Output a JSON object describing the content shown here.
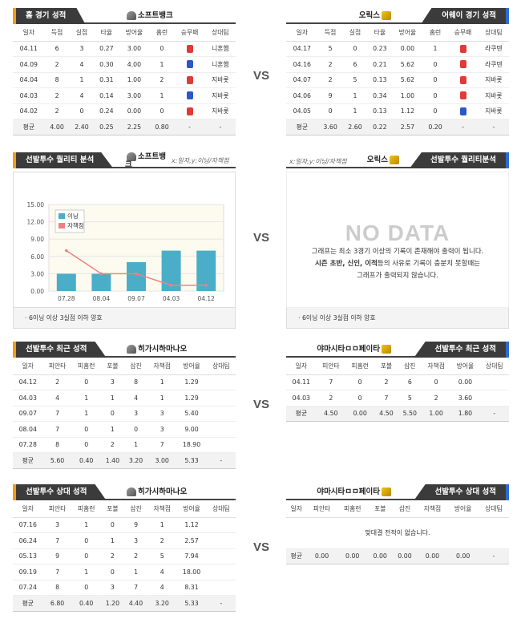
{
  "vs": "VS",
  "sec1": {
    "left": {
      "tab": "홈 경기 성적",
      "team": "소프트뱅크",
      "cols": [
        "일자",
        "득점",
        "실점",
        "타율",
        "방어율",
        "홈런",
        "승무패",
        "상대팀"
      ],
      "rows": [
        [
          "04.11",
          "6",
          "3",
          "0.27",
          "3.00",
          "0",
          "L",
          "니혼햄"
        ],
        [
          "04.09",
          "2",
          "4",
          "0.30",
          "4.00",
          "1",
          "W",
          "니혼햄"
        ],
        [
          "04.04",
          "8",
          "1",
          "0.31",
          "1.00",
          "2",
          "L",
          "지바롯"
        ],
        [
          "04.03",
          "2",
          "4",
          "0.14",
          "3.00",
          "1",
          "W",
          "지바롯"
        ],
        [
          "04.02",
          "2",
          "0",
          "0.24",
          "0.00",
          "0",
          "L",
          "지바롯"
        ]
      ],
      "avg": [
        "평균",
        "4.00",
        "2.40",
        "0.25",
        "2.25",
        "0.80",
        "-",
        "-"
      ]
    },
    "right": {
      "tab": "어웨이 경기 성적",
      "team": "오릭스",
      "cols": [
        "일자",
        "득점",
        "실점",
        "타율",
        "방어율",
        "홈런",
        "승무패",
        "상대팀"
      ],
      "rows": [
        [
          "04.17",
          "5",
          "0",
          "0.23",
          "0.00",
          "1",
          "L",
          "라쿠텐"
        ],
        [
          "04.16",
          "2",
          "6",
          "0.21",
          "5.62",
          "0",
          "L",
          "라쿠텐"
        ],
        [
          "04.07",
          "2",
          "5",
          "0.13",
          "5.62",
          "0",
          "L",
          "지바롯"
        ],
        [
          "04.06",
          "9",
          "1",
          "0.34",
          "1.00",
          "0",
          "L",
          "지바롯"
        ],
        [
          "04.05",
          "0",
          "1",
          "0.13",
          "1.12",
          "0",
          "W",
          "지바롯"
        ]
      ],
      "avg": [
        "평균",
        "3.60",
        "2.60",
        "0.22",
        "2.57",
        "0.20",
        "-",
        "-"
      ]
    }
  },
  "sec2": {
    "left": {
      "tab": "선발투수 퀄리티 분석",
      "team": "소프트뱅크",
      "axis_note": "x:일자,y:이닝/자책점",
      "note": "· 6이닝 이상 3실점 이하 양호"
    },
    "right": {
      "tab": "선발투수 퀄리티분석",
      "team": "오릭스",
      "axis_note": "x:일자,y:이닝/자책점",
      "nodata": "NO DATA",
      "msg1": "그래프는 최소 3경기 이상의 기록이 존재해야 출력이 됩니다.",
      "msg2a": "시즌 초반, 신인, 이적",
      "msg2b": "등의 사유로 기록이 충분치 못할때는",
      "msg3": "그래프가 출력되지 않습니다.",
      "note": "· 6이닝 이상 3실점 이하 양호"
    }
  },
  "chart_data": {
    "type": "bar",
    "categories": [
      "07.28",
      "08.04",
      "09.07",
      "04.03",
      "04.12"
    ],
    "series": [
      {
        "name": "이닝",
        "values": [
          3,
          3,
          5,
          7,
          7
        ]
      },
      {
        "name": "자책점",
        "values": [
          7,
          3,
          3,
          1,
          1
        ]
      }
    ],
    "ylim": [
      0,
      15
    ],
    "yticks": [
      "0.00",
      "3.00",
      "6.00",
      "9.00",
      "12.00",
      "15.00"
    ],
    "colors": {
      "bar": "#4aaec8",
      "line": "#f08080"
    }
  },
  "sec3": {
    "left": {
      "tab": "선발투수 최근 성적",
      "team": "히가시하마나오",
      "cols": [
        "일자",
        "피안타",
        "피홈런",
        "포볼",
        "삼진",
        "자책점",
        "방어율",
        "상대팀"
      ],
      "rows": [
        [
          "04.12",
          "2",
          "0",
          "3",
          "8",
          "1",
          "1.29",
          ""
        ],
        [
          "04.03",
          "4",
          "1",
          "1",
          "4",
          "1",
          "1.29",
          ""
        ],
        [
          "09.07",
          "7",
          "1",
          "0",
          "3",
          "3",
          "5.40",
          ""
        ],
        [
          "08.04",
          "7",
          "0",
          "1",
          "0",
          "3",
          "9.00",
          ""
        ],
        [
          "07.28",
          "8",
          "0",
          "2",
          "1",
          "7",
          "18.90",
          ""
        ]
      ],
      "avg": [
        "평균",
        "5.60",
        "0.40",
        "1.40",
        "3.20",
        "3.00",
        "5.33",
        "-"
      ]
    },
    "right": {
      "tab": "선발투수 최근 성적",
      "team": "야마시타ㅁㅁ페이타",
      "cols": [
        "일자",
        "피안타",
        "피홈런",
        "포볼",
        "삼진",
        "자책점",
        "방어율",
        "상대팀"
      ],
      "rows": [
        [
          "04.11",
          "7",
          "0",
          "2",
          "6",
          "0",
          "0.00",
          ""
        ],
        [
          "04.03",
          "2",
          "0",
          "7",
          "5",
          "2",
          "3.60",
          ""
        ]
      ],
      "avg": [
        "평균",
        "4.50",
        "0.00",
        "4.50",
        "5.50",
        "1.00",
        "1.80",
        "-"
      ]
    }
  },
  "sec4": {
    "left": {
      "tab": "선발투수 상대 성적",
      "team": "히가시하마나오",
      "cols": [
        "일자",
        "피안타",
        "피홈런",
        "포볼",
        "삼진",
        "자책점",
        "방어율",
        "상대팀"
      ],
      "rows": [
        [
          "07.16",
          "3",
          "1",
          "0",
          "9",
          "1",
          "1.12",
          ""
        ],
        [
          "06.24",
          "7",
          "0",
          "1",
          "3",
          "2",
          "2.57",
          ""
        ],
        [
          "05.13",
          "9",
          "0",
          "2",
          "2",
          "5",
          "7.94",
          ""
        ],
        [
          "09.19",
          "7",
          "1",
          "0",
          "1",
          "4",
          "18.00",
          ""
        ],
        [
          "07.24",
          "8",
          "0",
          "3",
          "7",
          "4",
          "8.31",
          ""
        ]
      ],
      "avg": [
        "평균",
        "6.80",
        "0.40",
        "1.20",
        "4.40",
        "3.20",
        "5.33",
        "-"
      ]
    },
    "right": {
      "tab": "선발투수 상대 성적",
      "team": "야마시타ㅁㅁ페이타",
      "cols": [
        "일자",
        "피안타",
        "피홈런",
        "포볼",
        "삼진",
        "자책점",
        "방어율",
        "상대팀"
      ],
      "empty": "맞대결 전적이 없습니다.",
      "avg": [
        "평균",
        "0.00",
        "0.00",
        "0.00",
        "0.00",
        "0.00",
        "0.00",
        "-"
      ]
    }
  }
}
